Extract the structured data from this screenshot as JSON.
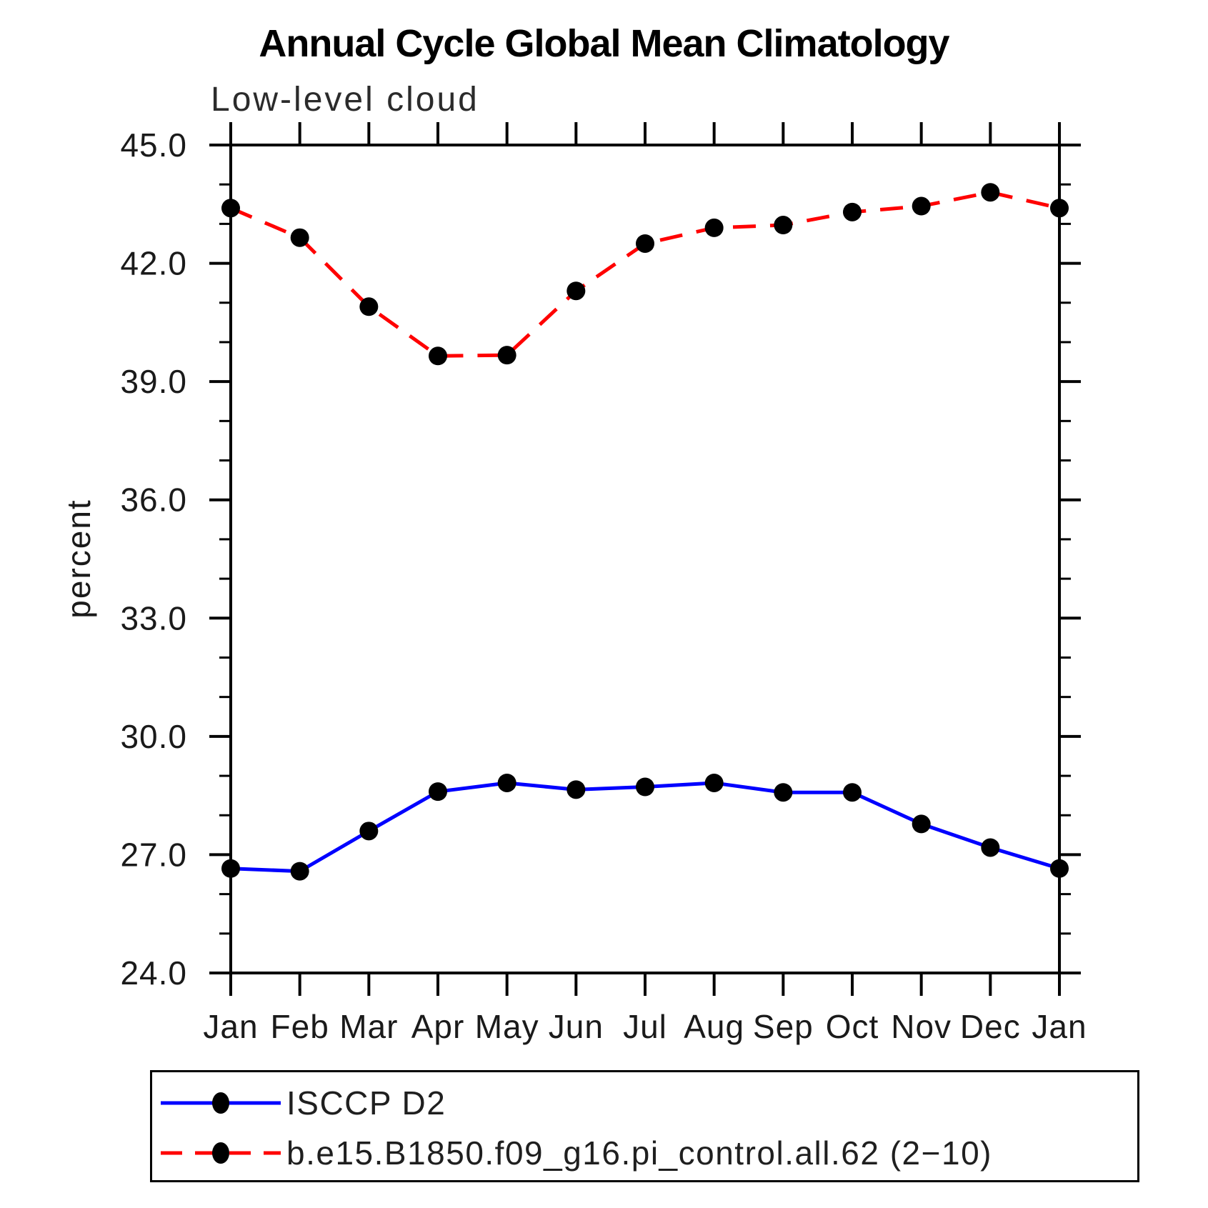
{
  "chart_data": {
    "type": "line",
    "title": "Annual Cycle Global Mean Climatology",
    "subtitle": "Low-level cloud",
    "xlabel": "",
    "ylabel": "percent",
    "categories": [
      "Jan",
      "Feb",
      "Mar",
      "Apr",
      "May",
      "Jun",
      "Jul",
      "Aug",
      "Sep",
      "Oct",
      "Nov",
      "Dec",
      "Jan"
    ],
    "ylim": [
      24.0,
      45.0
    ],
    "y_major_ticks": [
      45.0,
      42.0,
      39.0,
      36.0,
      33.0,
      30.0,
      27.0,
      24.0
    ],
    "y_tick_labels": [
      "45.0",
      "42.0",
      "39.0",
      "36.0",
      "33.0",
      "30.0",
      "27.0",
      "24.0"
    ],
    "y_minor_step": 1.0,
    "grid": false,
    "legend_position": "bottom",
    "axis_color": "#000000",
    "series": [
      {
        "name": "ISCCP D2",
        "color": "#0000ff",
        "style": "solid",
        "marker": "circle",
        "marker_color": "#000000",
        "values": [
          26.65,
          26.58,
          27.6,
          28.6,
          28.82,
          28.65,
          28.72,
          28.82,
          28.58,
          28.58,
          27.78,
          27.18,
          26.65
        ]
      },
      {
        "name": "b.e15.B1850.f09_g16.pi_control.all.62 (2−10)",
        "color": "#ff0000",
        "style": "dashed",
        "marker": "circle",
        "marker_color": "#000000",
        "values": [
          43.4,
          42.65,
          40.9,
          39.65,
          39.67,
          41.3,
          42.5,
          42.9,
          42.97,
          43.3,
          43.45,
          43.8,
          43.4
        ]
      }
    ]
  }
}
